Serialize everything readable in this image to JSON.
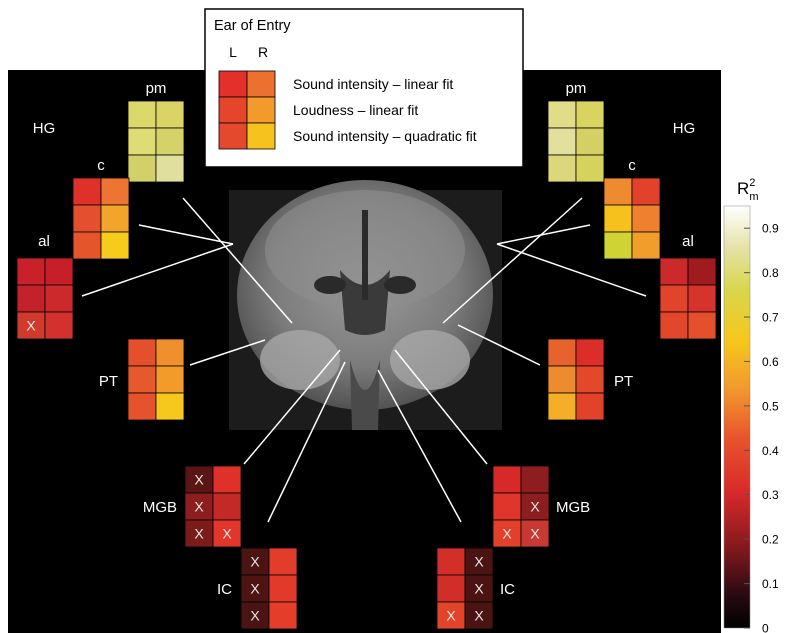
{
  "legend": {
    "title": "Ear of Entry",
    "col_left": "L",
    "col_right": "R",
    "rows": [
      {
        "label": "Sound intensity – linear fit",
        "colors": [
          "#e4302b",
          "#ec7030"
        ]
      },
      {
        "label": "Loudness – linear fit",
        "colors": [
          "#e4452b",
          "#f29b2c"
        ]
      },
      {
        "label": "Sound intensity – quadratic fit",
        "colors": [
          "#e4492d",
          "#f6c31e"
        ]
      }
    ]
  },
  "colorbar": {
    "label_main": "R",
    "label_sup": "2",
    "label_sub": "m",
    "min": 0,
    "max": 0.95,
    "ticks": [
      "0",
      "0.1",
      "0.2",
      "0.3",
      "0.4",
      "0.5",
      "0.6",
      "0.7",
      "0.8",
      "0.9"
    ],
    "tick_values": [
      0,
      0.1,
      0.2,
      0.3,
      0.4,
      0.5,
      0.6,
      0.7,
      0.8,
      0.9
    ]
  },
  "marker": "X",
  "regions": [
    {
      "id": "left-pm",
      "label": "pm",
      "side": "left",
      "cells": [
        [
          "#dcd96a",
          "#d9d463"
        ],
        [
          "#dedc74",
          "#d5d26a"
        ],
        [
          "#d3d06a",
          "#e0df9e"
        ]
      ],
      "x": []
    },
    {
      "id": "left-hg",
      "label": "HG",
      "side": "left",
      "cells": [],
      "x": []
    },
    {
      "id": "left-c",
      "label": "c",
      "side": "left",
      "cells": [
        [
          "#e0302a",
          "#ee7433"
        ],
        [
          "#e4502f",
          "#f2a52a"
        ],
        [
          "#e4552c",
          "#f6cb1b"
        ]
      ],
      "x": []
    },
    {
      "id": "left-al",
      "label": "al",
      "side": "left",
      "cells": [
        [
          "#c9212a",
          "#c71f29"
        ],
        [
          "#c3222a",
          "#cc292c"
        ],
        [
          "#cf3a2d",
          "#d2312d"
        ]
      ],
      "x": [
        [
          2,
          0
        ]
      ]
    },
    {
      "id": "left-pt",
      "label": "PT",
      "side": "left",
      "cells": [
        [
          "#e4502c",
          "#f0902d"
        ],
        [
          "#e6592d",
          "#f29b2b"
        ],
        [
          "#e5532c",
          "#f6c71c"
        ]
      ],
      "x": []
    },
    {
      "id": "left-mgb",
      "label": "MGB",
      "side": "left",
      "cells": [
        [
          "#5a1614",
          "#e0302a"
        ],
        [
          "#8c1f1d",
          "#c32a27"
        ],
        [
          "#7a1c1a",
          "#e0362b"
        ]
      ],
      "x": [
        [
          0,
          0
        ],
        [
          1,
          0
        ],
        [
          2,
          0
        ],
        [
          2,
          1
        ]
      ]
    },
    {
      "id": "left-ic",
      "label": "IC",
      "side": "left",
      "cells": [
        [
          "#4a1412",
          "#e23c2a"
        ],
        [
          "#4d1412",
          "#e13a2a"
        ],
        [
          "#4a1412",
          "#e43e2b"
        ]
      ],
      "x": [
        [
          0,
          0
        ],
        [
          1,
          0
        ],
        [
          2,
          0
        ]
      ]
    },
    {
      "id": "right-pm",
      "label": "pm",
      "side": "right",
      "cells": [
        [
          "#e0dc88",
          "#d9d45f"
        ],
        [
          "#e2e09c",
          "#d4d064"
        ],
        [
          "#dbd77a",
          "#d6d25e"
        ]
      ],
      "x": []
    },
    {
      "id": "right-hg",
      "label": "HG",
      "side": "right",
      "cells": [],
      "x": []
    },
    {
      "id": "right-c",
      "label": "c",
      "side": "right",
      "cells": [
        [
          "#ee8b30",
          "#e2422b"
        ],
        [
          "#f6c11c",
          "#ee8030"
        ],
        [
          "#cfd333",
          "#f19d2c"
        ]
      ],
      "x": []
    },
    {
      "id": "right-al",
      "label": "al",
      "side": "right",
      "cells": [
        [
          "#cc2a2a",
          "#9f1b1e"
        ],
        [
          "#e2442b",
          "#d5332b"
        ],
        [
          "#e2472b",
          "#e4502c"
        ]
      ],
      "x": []
    },
    {
      "id": "right-pt",
      "label": "PT",
      "side": "right",
      "cells": [
        [
          "#e8622d",
          "#db2e29"
        ],
        [
          "#ed8b2f",
          "#e4482b"
        ],
        [
          "#f4ae27",
          "#e2422a"
        ]
      ],
      "x": []
    },
    {
      "id": "right-mgb",
      "label": "MGB",
      "side": "right",
      "cells": [
        [
          "#d7292a",
          "#8e1e1e"
        ],
        [
          "#e0352a",
          "#8b1f1f"
        ],
        [
          "#e2402b",
          "#c73a34"
        ]
      ],
      "x": [
        [
          1,
          1
        ],
        [
          2,
          0
        ],
        [
          2,
          1
        ]
      ]
    },
    {
      "id": "right-ic",
      "label": "IC",
      "side": "right",
      "cells": [
        [
          "#d32f29",
          "#4b1412"
        ],
        [
          "#d22e29",
          "#4b1412"
        ],
        [
          "#e2442a",
          "#4a1412"
        ]
      ],
      "x": [
        [
          0,
          1
        ],
        [
          1,
          1
        ],
        [
          2,
          0
        ],
        [
          2,
          1
        ]
      ]
    }
  ]
}
